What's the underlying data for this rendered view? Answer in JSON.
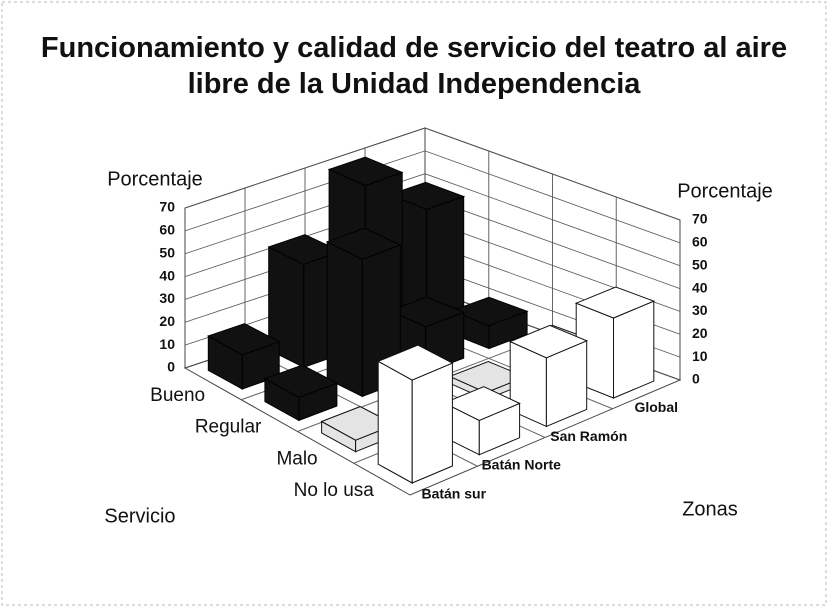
{
  "chart_data": {
    "type": "bar3d",
    "title": "Funcionamiento y calidad de servicio del teatro al aire libre de la Unidad Independencia",
    "y_label": "Porcentaje",
    "x_label": "Servicio",
    "z_label": "Zonas",
    "categories": [
      "Batán sur",
      "Batán Norte",
      "San Ramón",
      "Global"
    ],
    "series": [
      {
        "name": "Bueno",
        "color": "#111111",
        "values": [
          15,
          45,
          70,
          50
        ]
      },
      {
        "name": "Regular",
        "color": "#111111",
        "values": [
          10,
          60,
          20,
          10
        ]
      },
      {
        "name": "Malo",
        "color": "#e4e4e4",
        "values": [
          5,
          2,
          3,
          8
        ]
      },
      {
        "name": "No lo usa",
        "color": "#ffffff",
        "values": [
          45,
          15,
          30,
          35
        ]
      }
    ],
    "ylim": [
      0,
      70
    ],
    "yticks": [
      0,
      10,
      20,
      30,
      40,
      50,
      60,
      70
    ],
    "grid": true
  }
}
